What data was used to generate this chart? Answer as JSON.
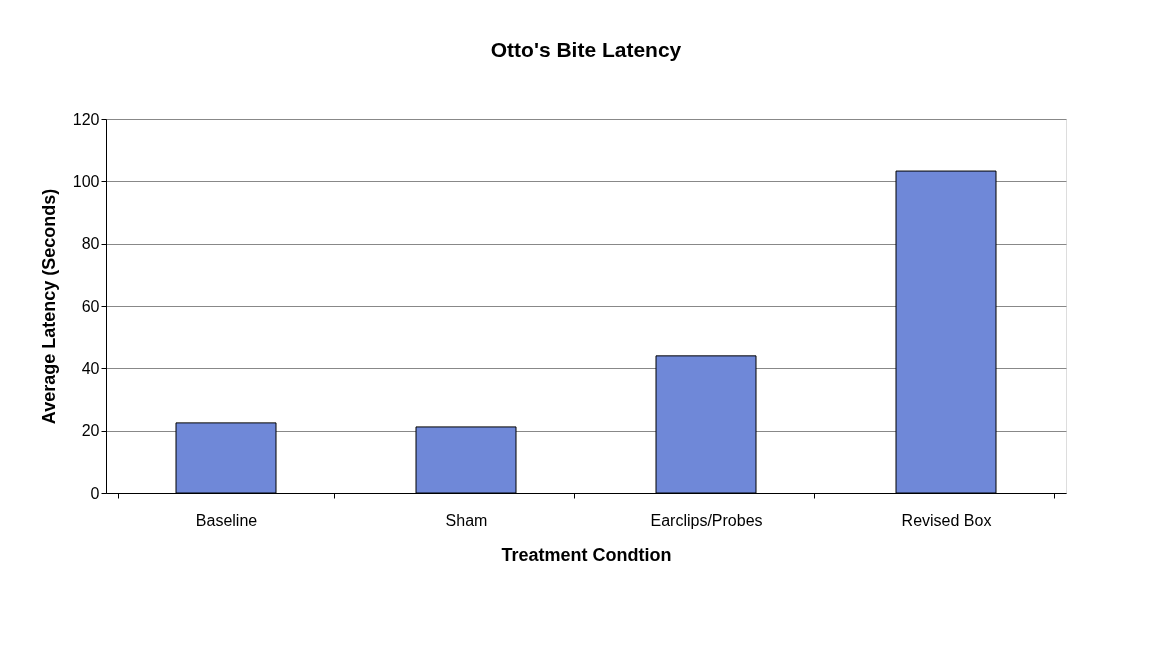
{
  "chart_data": {
    "type": "bar",
    "title": "Otto's Bite Latency",
    "xlabel": "Treatment Condtion",
    "ylabel": "Average Latency (Seconds)",
    "categories": [
      "Baseline",
      "Sham",
      "Earclips/Probes",
      "Revised Box"
    ],
    "values": [
      22.5,
      21.2,
      44,
      103.3
    ],
    "color": "#6f88d8",
    "ylim": [
      0,
      120
    ],
    "yticks": [
      0,
      20,
      40,
      60,
      80,
      100,
      120
    ],
    "grid": "y"
  }
}
